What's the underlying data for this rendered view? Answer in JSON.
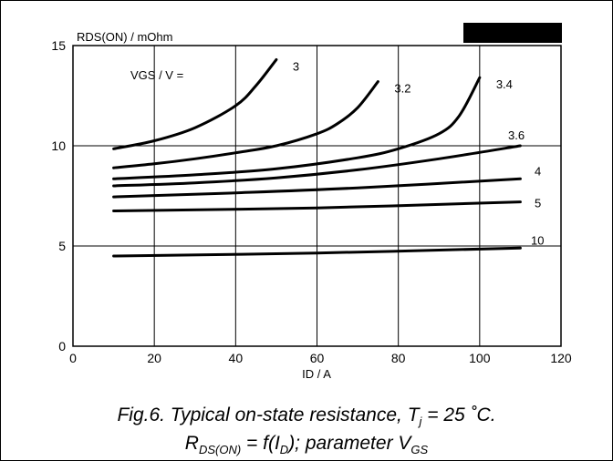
{
  "chart_data": {
    "type": "line",
    "ylabel": "RDS(ON) / mOhm",
    "xlabel": "ID / A",
    "xlim": [
      0,
      120
    ],
    "ylim": [
      0,
      15
    ],
    "x_ticks": [
      "0",
      "20",
      "40",
      "60",
      "80",
      "100",
      "120"
    ],
    "y_ticks": [
      "0",
      "5",
      "10",
      "15"
    ],
    "grid": true,
    "parameter_label": "VGS / V =",
    "series": [
      {
        "name": "3",
        "x": [
          10,
          20,
          30,
          40,
          45,
          50
        ],
        "y": [
          9.85,
          10.25,
          10.9,
          12.0,
          13.0,
          14.3
        ]
      },
      {
        "name": "3.2",
        "x": [
          10,
          20,
          30,
          40,
          50,
          60,
          65,
          70,
          75
        ],
        "y": [
          8.9,
          9.1,
          9.35,
          9.65,
          10.0,
          10.6,
          11.1,
          11.9,
          13.2
        ]
      },
      {
        "name": "3.4",
        "x": [
          10,
          30,
          50,
          70,
          80,
          90,
          95,
          100
        ],
        "y": [
          8.35,
          8.55,
          8.85,
          9.4,
          9.85,
          10.6,
          11.5,
          13.4
        ]
      },
      {
        "name": "3.6",
        "x": [
          10,
          30,
          50,
          70,
          90,
          110
        ],
        "y": [
          8.0,
          8.15,
          8.4,
          8.8,
          9.35,
          10.0
        ]
      },
      {
        "name": "4",
        "x": [
          10,
          40,
          70,
          110
        ],
        "y": [
          7.45,
          7.65,
          7.9,
          8.35
        ]
      },
      {
        "name": "5",
        "x": [
          10,
          60,
          110
        ],
        "y": [
          6.75,
          6.9,
          7.2
        ]
      },
      {
        "name": "10",
        "x": [
          10,
          60,
          110
        ],
        "y": [
          4.5,
          4.65,
          4.9
        ]
      }
    ],
    "caption_line1": "Fig.6.   Typical on-state resistance, T",
    "caption_line1_sub": "j",
    "caption_line1_end": " = 25 ˚C.",
    "caption_line2_a": "R",
    "caption_line2_sub1": "DS(ON)",
    "caption_line2_b": " = f(I",
    "caption_line2_sub2": "D",
    "caption_line2_c": "); parameter V",
    "caption_line2_sub3": "GS"
  }
}
